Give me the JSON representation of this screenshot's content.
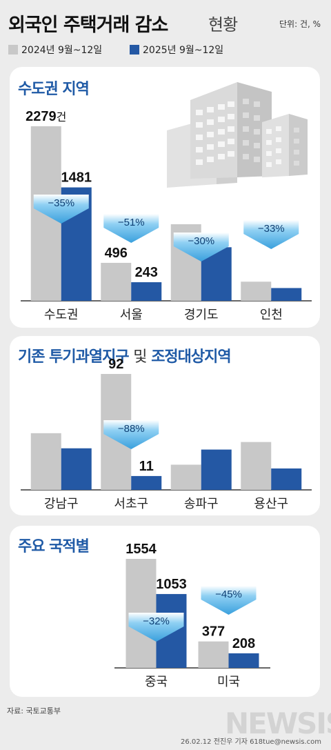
{
  "header": {
    "title_main": "외국인 주택거래 감소",
    "title_accent": "현황",
    "unit": "단위: 건, %"
  },
  "legend": {
    "items": [
      {
        "label": "2024년 9월~12일",
        "color": "#c8c8c8"
      },
      {
        "label": "2025년 9월~12일",
        "color": "#2458a4"
      }
    ]
  },
  "colors": {
    "gray": "#c8c8c8",
    "blue": "#2458a4",
    "arrow": "#3aa0dd",
    "title": "#1f5aa6"
  },
  "chart_data": [
    {
      "type": "bar",
      "title": "수도권 지역",
      "categories": [
        "수도권",
        "서울",
        "경기도",
        "인천"
      ],
      "series": [
        {
          "name": "2024년 9월~12일",
          "values": [
            2279,
            496,
            1000,
            250
          ]
        },
        {
          "name": "2025년 9월~12일",
          "values": [
            1481,
            243,
            700,
            167
          ]
        }
      ],
      "data_labels": {
        "gray": [
          "2279",
          "496",
          "",
          ""
        ],
        "blue": [
          "1481",
          "243",
          "",
          ""
        ]
      },
      "first_label_suffix": "건",
      "change_labels": [
        "−35%",
        "−51%",
        "−30%",
        "−33%"
      ]
    },
    {
      "type": "bar",
      "title_a": "기존 투기과열지구",
      "title_b": "및",
      "title_c": "조정대상지역",
      "categories": [
        "강남구",
        "서초구",
        "송파구",
        "용산구"
      ],
      "series": [
        {
          "name": "2024년 9월~12일",
          "values": [
            45,
            92,
            20,
            38
          ]
        },
        {
          "name": "2025년 9월~12일",
          "values": [
            33,
            11,
            32,
            17
          ]
        }
      ],
      "data_labels": {
        "gray": [
          "",
          "92",
          "",
          ""
        ],
        "blue": [
          "",
          "11",
          "",
          ""
        ]
      },
      "change_labels": [
        "",
        "−88%",
        "",
        ""
      ]
    },
    {
      "type": "bar",
      "title": "주요 국적별",
      "categories": [
        "중국",
        "미국"
      ],
      "series": [
        {
          "name": "2024년 9월~12일",
          "values": [
            1554,
            377
          ]
        },
        {
          "name": "2025년 9월~12일",
          "values": [
            1053,
            208
          ]
        }
      ],
      "data_labels": {
        "gray": [
          "1554",
          "377"
        ],
        "blue": [
          "1053",
          "208"
        ]
      },
      "change_labels": [
        "−32%",
        "−45%"
      ]
    }
  ],
  "footer": {
    "source": "자료: 국토교통부",
    "credit": "26.02.12 전진우 기자 618tue@newsis.com",
    "watermark": "NEWSIS"
  }
}
